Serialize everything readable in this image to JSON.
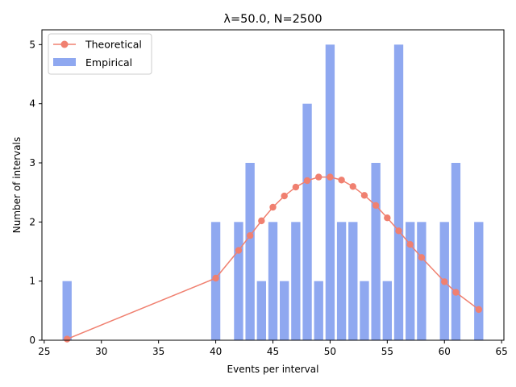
{
  "chart_data": {
    "type": "bar",
    "title": "λ=50.0, N=2500",
    "xlabel": "Events per interval",
    "ylabel": "Number of intervals",
    "xlim": [
      24.8,
      65.2
    ],
    "ylim": [
      0,
      5.25
    ],
    "xticks": [
      25,
      30,
      35,
      40,
      45,
      50,
      55,
      60,
      65
    ],
    "yticks": [
      0,
      1,
      2,
      3,
      4,
      5
    ],
    "grid": false,
    "legend_position": "top-left",
    "series": [
      {
        "name": "Theoretical",
        "kind": "line",
        "color": "#f08070",
        "points": [
          {
            "x": 27,
            "y": 0.02
          },
          {
            "x": 40,
            "y": 1.05
          },
          {
            "x": 42,
            "y": 1.52
          },
          {
            "x": 43,
            "y": 1.77
          },
          {
            "x": 44,
            "y": 2.02
          },
          {
            "x": 45,
            "y": 2.25
          },
          {
            "x": 46,
            "y": 2.44
          },
          {
            "x": 47,
            "y": 2.59
          },
          {
            "x": 48,
            "y": 2.7
          },
          {
            "x": 49,
            "y": 2.76
          },
          {
            "x": 50,
            "y": 2.76
          },
          {
            "x": 51,
            "y": 2.71
          },
          {
            "x": 52,
            "y": 2.6
          },
          {
            "x": 53,
            "y": 2.45
          },
          {
            "x": 54,
            "y": 2.28
          },
          {
            "x": 55,
            "y": 2.07
          },
          {
            "x": 56,
            "y": 1.85
          },
          {
            "x": 57,
            "y": 1.62
          },
          {
            "x": 58,
            "y": 1.4
          },
          {
            "x": 60,
            "y": 0.99
          },
          {
            "x": 61,
            "y": 0.81
          },
          {
            "x": 63,
            "y": 0.52
          }
        ]
      },
      {
        "name": "Empirical",
        "kind": "bar",
        "color": "#8fa8f0",
        "points": [
          {
            "x": 27,
            "y": 1
          },
          {
            "x": 40,
            "y": 2
          },
          {
            "x": 42,
            "y": 2
          },
          {
            "x": 43,
            "y": 3
          },
          {
            "x": 44,
            "y": 1
          },
          {
            "x": 45,
            "y": 2
          },
          {
            "x": 46,
            "y": 1
          },
          {
            "x": 47,
            "y": 2
          },
          {
            "x": 48,
            "y": 4
          },
          {
            "x": 49,
            "y": 1
          },
          {
            "x": 50,
            "y": 5
          },
          {
            "x": 51,
            "y": 2
          },
          {
            "x": 52,
            "y": 2
          },
          {
            "x": 53,
            "y": 1
          },
          {
            "x": 54,
            "y": 3
          },
          {
            "x": 55,
            "y": 1
          },
          {
            "x": 56,
            "y": 5
          },
          {
            "x": 57,
            "y": 2
          },
          {
            "x": 58,
            "y": 2
          },
          {
            "x": 60,
            "y": 2
          },
          {
            "x": 61,
            "y": 3
          },
          {
            "x": 63,
            "y": 2
          }
        ]
      }
    ]
  }
}
